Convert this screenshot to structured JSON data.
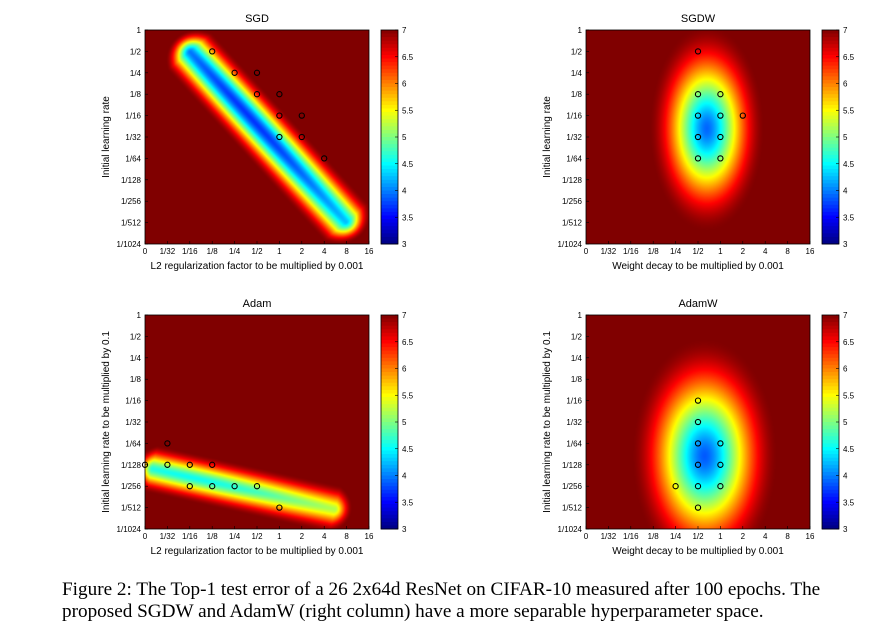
{
  "figure": {
    "caption": "Figure 2:  The Top-1 test error of a 26 2x64d ResNet on CIFAR-10 measured after 100 epochs. The\nproposed SGDW and AdamW (right column) have a more separable hyperparameter space."
  },
  "chart_data": [
    {
      "type": "heatmap",
      "title": "SGD",
      "xlabel": "L2 regularization factor to be multiplied by 0.001",
      "ylabel": "Initial learning rate",
      "x_ticks": [
        "0",
        "1/32",
        "1/16",
        "1/8",
        "1/4",
        "1/2",
        "1",
        "2",
        "4",
        "8",
        "16"
      ],
      "y_ticks": [
        "1",
        "1/2",
        "1/4",
        "1/8",
        "1/16",
        "1/32",
        "1/64",
        "1/128",
        "1/256",
        "1/512",
        "1/1024"
      ],
      "colorbar": {
        "min": 3,
        "max": 7,
        "ticks": [
          "3",
          "3.5",
          "4",
          "4.5",
          "5",
          "5.5",
          "6",
          "6.5",
          "7"
        ]
      },
      "markers": [
        [
          3,
          1
        ],
        [
          4,
          2
        ],
        [
          5,
          2
        ],
        [
          5,
          3
        ],
        [
          6,
          3
        ],
        [
          6,
          4
        ],
        [
          7,
          4
        ],
        [
          6,
          5
        ],
        [
          7,
          5
        ],
        [
          8,
          6
        ]
      ],
      "region": {
        "kind": "diagonal",
        "start": [
          2,
          1
        ],
        "end": [
          9,
          9
        ],
        "width": 1.35,
        "edge": 0.75,
        "min": 3.7,
        "center_t": 0.38,
        "spread": 0.45
      }
    },
    {
      "type": "heatmap",
      "title": "SGDW",
      "xlabel": "Weight decay to be multiplied by 0.001",
      "ylabel": "Initial learning rate",
      "x_ticks": [
        "0",
        "1/32",
        "1/16",
        "1/8",
        "1/4",
        "1/2",
        "1",
        "2",
        "4",
        "8",
        "16"
      ],
      "y_ticks": [
        "1",
        "1/2",
        "1/4",
        "1/8",
        "1/16",
        "1/32",
        "1/64",
        "1/128",
        "1/256",
        "1/512",
        "1/1024"
      ],
      "colorbar": {
        "min": 3,
        "max": 7,
        "ticks": [
          "3",
          "3.5",
          "4",
          "4.5",
          "5",
          "5.5",
          "6",
          "6.5",
          "7"
        ]
      },
      "markers": [
        [
          5,
          1
        ],
        [
          5,
          3
        ],
        [
          6,
          3
        ],
        [
          5,
          4
        ],
        [
          6,
          4
        ],
        [
          7,
          4
        ],
        [
          5,
          5
        ],
        [
          6,
          5
        ],
        [
          5,
          6
        ],
        [
          6,
          6
        ]
      ],
      "region": {
        "kind": "ellipse",
        "cx": 5.4,
        "cy": 4.6,
        "rx": 2.6,
        "ry": 4.9,
        "min": 3.9
      }
    },
    {
      "type": "heatmap",
      "title": "Adam",
      "xlabel": "L2 regularization factor to be multiplied by 0.001",
      "ylabel": "Initial learning rate to be multiplied by 0.1",
      "x_ticks": [
        "0",
        "1/32",
        "1/16",
        "1/8",
        "1/4",
        "1/2",
        "1",
        "2",
        "4",
        "8",
        "16"
      ],
      "y_ticks": [
        "1",
        "1/2",
        "1/4",
        "1/8",
        "1/16",
        "1/32",
        "1/64",
        "1/128",
        "1/256",
        "1/512",
        "1/1024"
      ],
      "colorbar": {
        "min": 3,
        "max": 7,
        "ticks": [
          "3",
          "3.5",
          "4",
          "4.5",
          "5",
          "5.5",
          "6",
          "6.5",
          "7"
        ]
      },
      "markers": [
        [
          1,
          6
        ],
        [
          0,
          7
        ],
        [
          1,
          7
        ],
        [
          2,
          7
        ],
        [
          3,
          7
        ],
        [
          2,
          8
        ],
        [
          3,
          8
        ],
        [
          4,
          8
        ],
        [
          5,
          8
        ],
        [
          6,
          9
        ]
      ],
      "region": {
        "kind": "diagonal",
        "start": [
          0.3,
          7.2
        ],
        "end": [
          8.5,
          9.1
        ],
        "width": 1.15,
        "edge": 0.75,
        "min": 4.55,
        "center_t": 0.2,
        "spread": 0.5
      }
    },
    {
      "type": "heatmap",
      "title": "AdamW",
      "xlabel": "Weight decay to be multiplied by 0.001",
      "ylabel": "Initial learning rate to be multiplied by 0.1",
      "x_ticks": [
        "0",
        "1/32",
        "1/16",
        "1/8",
        "1/4",
        "1/2",
        "1",
        "2",
        "4",
        "8",
        "16"
      ],
      "y_ticks": [
        "1",
        "1/2",
        "1/4",
        "1/8",
        "1/16",
        "1/32",
        "1/64",
        "1/128",
        "1/256",
        "1/512",
        "1/1024"
      ],
      "colorbar": {
        "min": 3,
        "max": 7,
        "ticks": [
          "3",
          "3.5",
          "4",
          "4.5",
          "5",
          "5.5",
          "6",
          "6.5",
          "7"
        ]
      },
      "markers": [
        [
          5,
          4
        ],
        [
          5,
          5
        ],
        [
          5,
          6
        ],
        [
          6,
          6
        ],
        [
          5,
          7
        ],
        [
          6,
          7
        ],
        [
          4,
          8
        ],
        [
          5,
          8
        ],
        [
          6,
          8
        ],
        [
          5,
          9
        ]
      ],
      "region": {
        "kind": "ellipse",
        "cx": 5.3,
        "cy": 6.6,
        "rx": 3.3,
        "ry": 5.6,
        "min": 3.85
      }
    }
  ]
}
